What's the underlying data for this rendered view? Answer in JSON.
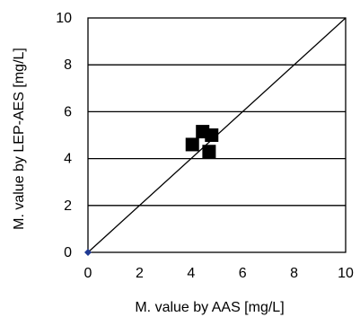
{
  "chart_data": {
    "type": "scatter",
    "title": "",
    "xlabel": "M. value by AAS [mg/L]",
    "ylabel": "M. value by LEP-AES [mg/L]",
    "xlim": [
      0,
      10
    ],
    "ylim": [
      0,
      10
    ],
    "x_ticks": [
      "0",
      "2",
      "4",
      "6",
      "8",
      "10"
    ],
    "y_ticks": [
      "0",
      "2",
      "4",
      "6",
      "8",
      "10"
    ],
    "grid": "horizontal",
    "legend": "none",
    "series": [
      {
        "marker": "square",
        "color": "#000000",
        "points": [
          {
            "x": 4.05,
            "y": 4.6
          },
          {
            "x": 4.45,
            "y": 5.15
          },
          {
            "x": 4.8,
            "y": 5.0
          },
          {
            "x": 4.7,
            "y": 4.3
          }
        ]
      },
      {
        "marker": "diamond",
        "color": "#1f3a93",
        "points": [
          {
            "x": 0,
            "y": 0
          }
        ]
      }
    ],
    "reference_line": {
      "type": "y=x",
      "from": [
        0,
        0
      ],
      "to": [
        10,
        10
      ],
      "color": "#000000"
    }
  }
}
